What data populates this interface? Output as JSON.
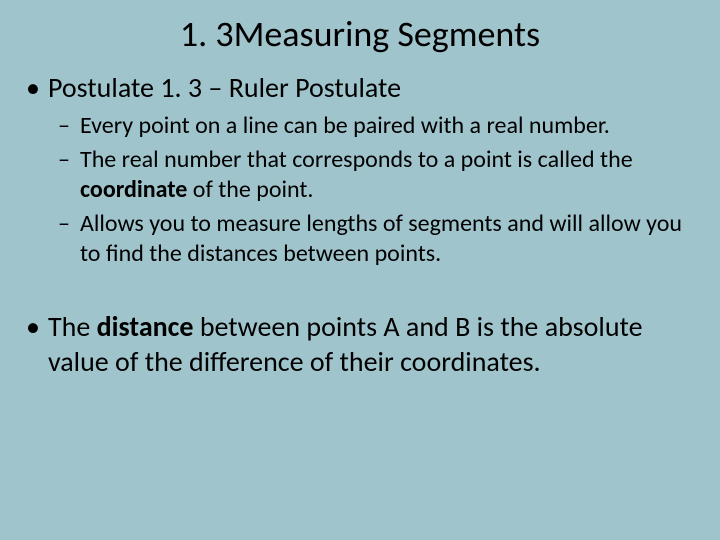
{
  "background_color": "#9fc4cc",
  "text_color": "#000000",
  "title_fontsize": 36,
  "level1_fontsize": 28,
  "level2_fontsize": 24,
  "title": "1. 3Measuring Segments",
  "bullet1": "Postulate 1. 3 – Ruler Postulate",
  "sub1": "Every point on a line can be paired with a real number.",
  "sub2a": "The real number that corresponds to a point is called the ",
  "sub2b": "coordinate",
  "sub2c": " of the point.",
  "sub3": "Allows you to measure lengths of segments and will allow you to find the distances between points.",
  "bullet2a": "The ",
  "bullet2b": "distance",
  "bullet2c": " between points A and B is the absolute value of the difference of their coordinates."
}
